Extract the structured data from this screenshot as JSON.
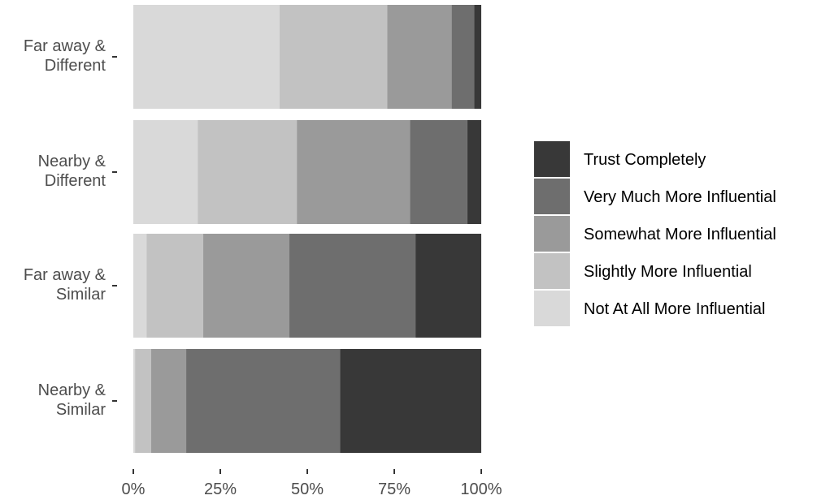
{
  "chart_data": {
    "type": "bar",
    "orientation": "horizontal",
    "stacked": true,
    "percent": true,
    "title": "",
    "xlabel": "",
    "ylabel": "",
    "xlim": [
      0,
      100
    ],
    "x_ticks": [
      "0%",
      "25%",
      "50%",
      "75%",
      "100%"
    ],
    "grid": false,
    "legend_position": "right",
    "categories": [
      "Far away & Different",
      "Nearby & Different",
      "Far away & Similar",
      "Nearby & Similar"
    ],
    "category_lines": [
      [
        "Far away &",
        "Different"
      ],
      [
        "Nearby &",
        "Different"
      ],
      [
        "Far away &",
        "Similar"
      ],
      [
        "Nearby &",
        "Similar"
      ]
    ],
    "series": [
      {
        "name": "Not At All More Influential",
        "color": "#d9d9d9",
        "values": [
          42,
          18.5,
          3.8,
          0.5
        ]
      },
      {
        "name": "Slightly More Influential",
        "color": "#c2c2c2",
        "values": [
          31,
          28.5,
          16.3,
          4.6
        ]
      },
      {
        "name": "Somewhat More Influential",
        "color": "#9a9a9a",
        "values": [
          18.5,
          32.5,
          24.7,
          10.1
        ]
      },
      {
        "name": "Very Much More Influential",
        "color": "#6e6e6e",
        "values": [
          6.5,
          16.5,
          36.3,
          44.2
        ]
      },
      {
        "name": "Trust Completely",
        "color": "#383838",
        "values": [
          2,
          4,
          18.9,
          40.6
        ]
      }
    ],
    "legend_order": [
      "Trust Completely",
      "Very Much More Influential",
      "Somewhat More Influential",
      "Slightly More Influential",
      "Not At All More Influential"
    ]
  }
}
